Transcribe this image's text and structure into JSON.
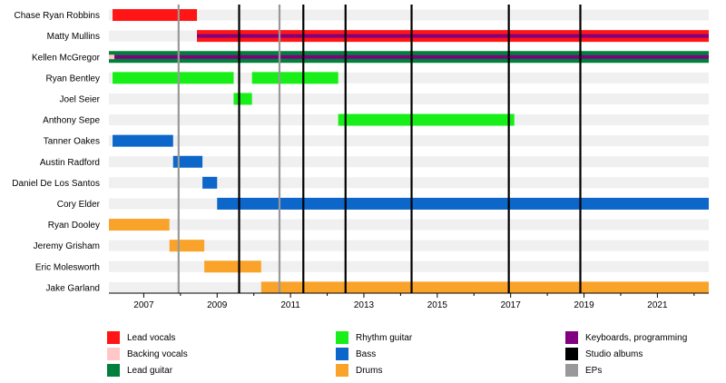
{
  "chart_data": {
    "type": "timeline",
    "title": "",
    "xlabel": "",
    "ylabel": "",
    "xlim": [
      2006.05,
      2022.4
    ],
    "x_ticks": [
      2007,
      2009,
      2011,
      2013,
      2015,
      2017,
      2019,
      2021
    ],
    "grid": "alternating row stripes",
    "members": [
      "Chase Ryan Robbins",
      "Matty Mullins",
      "Kellen McGregor",
      "Ryan Bentley",
      "Joel Seier",
      "Anthony Sepe",
      "Tanner Oakes",
      "Austin Radford",
      "Daniel De Los Santos",
      "Cory Elder",
      "Ryan Dooley",
      "Jeremy Grisham",
      "Eric Molesworth",
      "Jake Garland"
    ],
    "bars": [
      {
        "member": "Chase Ryan Robbins",
        "role": "Lead vocals",
        "start": 2006.15,
        "end": 2008.45
      },
      {
        "member": "Matty Mullins",
        "role": "Lead vocals",
        "start": 2008.45,
        "end": 2022.4
      },
      {
        "member": "Matty Mullins",
        "role": "Keyboards, programming",
        "start": 2008.45,
        "end": 2022.4,
        "overlay": true
      },
      {
        "member": "Kellen McGregor",
        "role": "Lead guitar",
        "start": 2006.05,
        "end": 2022.4
      },
      {
        "member": "Kellen McGregor",
        "role": "Keyboards, programming",
        "start": 2006.05,
        "end": 2022.4,
        "overlay": true
      },
      {
        "member": "Kellen McGregor",
        "role": "Backing vocals",
        "start": 2006.05,
        "end": 2006.2,
        "dot": true
      },
      {
        "member": "Ryan Bentley",
        "role": "Rhythm guitar",
        "start": 2006.15,
        "end": 2009.45
      },
      {
        "member": "Ryan Bentley",
        "role": "Rhythm guitar",
        "start": 2009.95,
        "end": 2012.3
      },
      {
        "member": "Joel Seier",
        "role": "Rhythm guitar",
        "start": 2009.45,
        "end": 2009.95
      },
      {
        "member": "Anthony Sepe",
        "role": "Rhythm guitar",
        "start": 2012.3,
        "end": 2017.1
      },
      {
        "member": "Tanner Oakes",
        "role": "Bass",
        "start": 2006.15,
        "end": 2007.8
      },
      {
        "member": "Austin Radford",
        "role": "Bass",
        "start": 2007.8,
        "end": 2008.6
      },
      {
        "member": "Daniel De Los Santos",
        "role": "Bass",
        "start": 2008.6,
        "end": 2009.0
      },
      {
        "member": "Cory Elder",
        "role": "Bass",
        "start": 2009.0,
        "end": 2022.4
      },
      {
        "member": "Ryan Dooley",
        "role": "Drums",
        "start": 2006.05,
        "end": 2007.7
      },
      {
        "member": "Jeremy Grisham",
        "role": "Drums",
        "start": 2007.7,
        "end": 2008.65
      },
      {
        "member": "Eric Molesworth",
        "role": "Drums",
        "start": 2008.65,
        "end": 2010.2
      },
      {
        "member": "Jake Garland",
        "role": "Drums",
        "start": 2010.2,
        "end": 2022.4
      }
    ],
    "studio_albums": [
      2009.6,
      2011.35,
      2012.5,
      2014.3,
      2016.95,
      2018.9
    ],
    "eps": [
      2007.95,
      2010.7
    ],
    "legend_placement": "bottom",
    "legend": [
      {
        "label": "Lead vocals",
        "role": "Lead vocals"
      },
      {
        "label": "Backing vocals",
        "role": "Backing vocals"
      },
      {
        "label": "Lead guitar",
        "role": "Lead guitar"
      },
      {
        "label": "Rhythm guitar",
        "role": "Rhythm guitar"
      },
      {
        "label": "Bass",
        "role": "Bass"
      },
      {
        "label": "Drums",
        "role": "Drums"
      },
      {
        "label": "Keyboards, programming",
        "role": "Keyboards, programming"
      },
      {
        "label": "Studio albums",
        "role": "Studio albums"
      },
      {
        "label": "EPs",
        "role": "EPs"
      }
    ]
  },
  "colors": {
    "Lead vocals": "#ff1515",
    "Backing vocals": "#ffc8c8",
    "Lead guitar": "#00803a",
    "Rhythm guitar": "#18ee18",
    "Bass": "#0d66c9",
    "Drums": "#f9a32b",
    "Keyboards, programming": "#800080",
    "Studio albums": "#000000",
    "EPs": "#999999",
    "row_stripe": "#f0f0f0"
  }
}
